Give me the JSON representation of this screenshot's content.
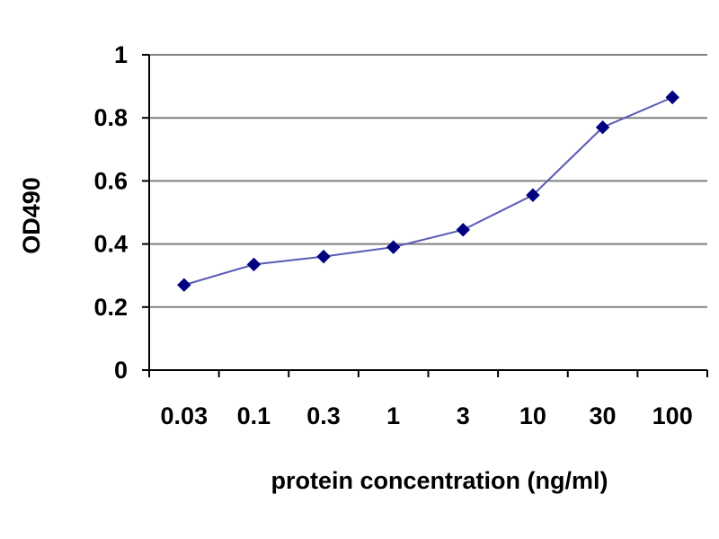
{
  "chart_data": {
    "type": "line",
    "title": "",
    "xlabel": "protein concentration (ng/ml)",
    "ylabel": "OD490",
    "categories": [
      "0.03",
      "0.1",
      "0.3",
      "1",
      "3",
      "10",
      "30",
      "100"
    ],
    "series": [
      {
        "values": [
          0.27,
          0.335,
          0.36,
          0.39,
          0.445,
          0.555,
          0.77,
          0.865
        ],
        "color": "#000080",
        "line_color": "#5a5ab4",
        "marker": "diamond"
      }
    ],
    "ylim": [
      0,
      1
    ],
    "yticks": [
      "0",
      "0.2",
      "0.4",
      "0.6",
      "0.8",
      "1"
    ],
    "grid": true,
    "grid_color": "#808080",
    "legend": "none"
  }
}
